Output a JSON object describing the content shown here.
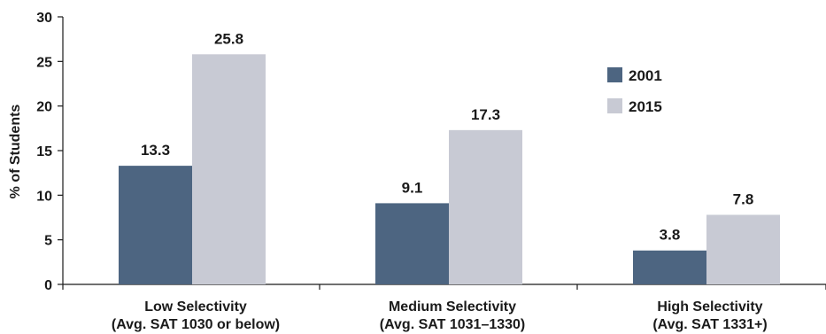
{
  "chart_data": {
    "type": "bar",
    "title": "",
    "xlabel": "",
    "ylabel": "% of Students",
    "ylim": [
      0,
      30
    ],
    "yticks": [
      0,
      5,
      10,
      15,
      20,
      25,
      30
    ],
    "grid": false,
    "legend_position": "top-right",
    "categories": [
      [
        "Low Selectivity",
        "(Avg. SAT 1030 or below)"
      ],
      [
        "Medium Selectivity",
        "(Avg. SAT 1031–1330)"
      ],
      [
        "High Selectivity",
        "(Avg. SAT 1331+)"
      ]
    ],
    "series": [
      {
        "name": "2001",
        "color": "#4d6581",
        "values": [
          13.3,
          9.1,
          3.8
        ],
        "labels": [
          "13.3",
          "9.1",
          "3.8"
        ]
      },
      {
        "name": "2015",
        "color": "#c8cad4",
        "values": [
          25.8,
          17.3,
          7.8
        ],
        "labels": [
          "25.8",
          "17.3",
          "7.8"
        ]
      }
    ]
  }
}
